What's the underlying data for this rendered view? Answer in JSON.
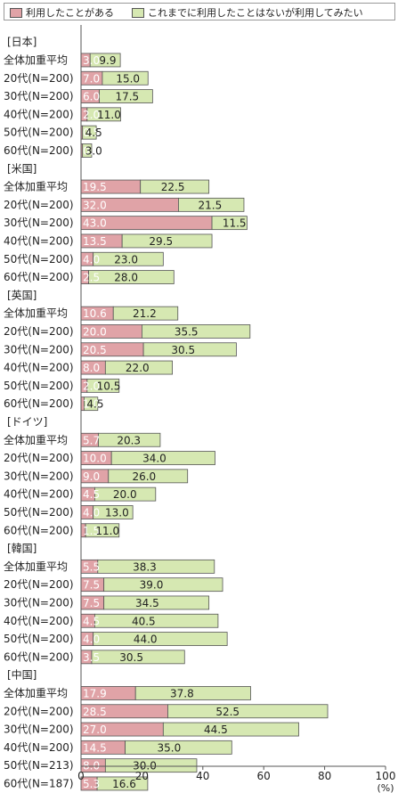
{
  "legend": {
    "used": "利用したことがある",
    "want": "これまでに利用したことはないが利用してみたい"
  },
  "colors": {
    "used": "#e0a3a7",
    "want": "#d6e8b2",
    "border": "#555555",
    "axis": "#555555"
  },
  "chart_data": {
    "type": "bar",
    "orientation": "horizontal",
    "stacked": true,
    "xlim": [
      0,
      100
    ],
    "xticks": [
      "0",
      "20",
      "40",
      "60",
      "80",
      "100"
    ],
    "unit": "(%)",
    "series": [
      {
        "key": "used",
        "name": "利用したことがある"
      },
      {
        "key": "want",
        "name": "これまでに利用したことはないが利用してみたい"
      }
    ],
    "groups": [
      {
        "name": "[日本]",
        "rows": [
          {
            "label": "全体加重平均",
            "used": 3.0,
            "want": 9.9,
            "used_label": "3.0",
            "want_label": "9.9"
          },
          {
            "label": "20代(N=200)",
            "used": 7.0,
            "want": 15.0,
            "used_label": "7.0",
            "want_label": "15.0"
          },
          {
            "label": "30代(N=200)",
            "used": 6.0,
            "want": 17.5,
            "used_label": "6.0",
            "want_label": "17.5"
          },
          {
            "label": "40代(N=200)",
            "used": 2.0,
            "want": 11.0,
            "used_label": "2.0",
            "want_label": "11.0"
          },
          {
            "label": "50代(N=200)",
            "used": 0.5,
            "want": 4.5,
            "used_label": "0.5",
            "want_label": "4.5"
          },
          {
            "label": "60代(N=200)",
            "used": 0.5,
            "want": 3.0,
            "used_label": "0.5",
            "want_label": "3.0"
          }
        ]
      },
      {
        "name": "[米国]",
        "rows": [
          {
            "label": "全体加重平均",
            "used": 19.5,
            "want": 22.5,
            "used_label": "19.5",
            "want_label": "22.5"
          },
          {
            "label": "20代(N=200)",
            "used": 32.0,
            "want": 21.5,
            "used_label": "32.0",
            "want_label": "21.5"
          },
          {
            "label": "30代(N=200)",
            "used": 43.0,
            "want": 11.5,
            "used_label": "43.0",
            "want_label": "11.5"
          },
          {
            "label": "40代(N=200)",
            "used": 13.5,
            "want": 29.5,
            "used_label": "13.5",
            "want_label": "29.5"
          },
          {
            "label": "50代(N=200)",
            "used": 4.0,
            "want": 23.0,
            "used_label": "4.0",
            "want_label": "23.0"
          },
          {
            "label": "60代(N=200)",
            "used": 2.5,
            "want": 28.0,
            "used_label": "2.5",
            "want_label": "28.0"
          }
        ]
      },
      {
        "name": "[英国]",
        "rows": [
          {
            "label": "全体加重平均",
            "used": 10.6,
            "want": 21.2,
            "used_label": "10.6",
            "want_label": "21.2"
          },
          {
            "label": "20代(N=200)",
            "used": 20.0,
            "want": 35.5,
            "used_label": "20.0",
            "want_label": "35.5"
          },
          {
            "label": "30代(N=200)",
            "used": 20.5,
            "want": 30.5,
            "used_label": "20.5",
            "want_label": "30.5"
          },
          {
            "label": "40代(N=200)",
            "used": 8.0,
            "want": 22.0,
            "used_label": "8.0",
            "want_label": "22.0"
          },
          {
            "label": "50代(N=200)",
            "used": 2.0,
            "want": 10.5,
            "used_label": "2.0",
            "want_label": "10.5"
          },
          {
            "label": "60代(N=200)",
            "used": 1.0,
            "want": 4.5,
            "used_label": "1.0",
            "want_label": "4.5"
          }
        ]
      },
      {
        "name": "[ドイツ]",
        "rows": [
          {
            "label": "全体加重平均",
            "used": 5.7,
            "want": 20.3,
            "used_label": "5.7",
            "want_label": "20.3"
          },
          {
            "label": "20代(N=200)",
            "used": 10.0,
            "want": 34.0,
            "used_label": "10.0",
            "want_label": "34.0"
          },
          {
            "label": "30代(N=200)",
            "used": 9.0,
            "want": 26.0,
            "used_label": "9.0",
            "want_label": "26.0"
          },
          {
            "label": "40代(N=200)",
            "used": 4.5,
            "want": 20.0,
            "used_label": "4.5",
            "want_label": "20.0"
          },
          {
            "label": "50代(N=200)",
            "used": 4.0,
            "want": 13.0,
            "used_label": "4.0",
            "want_label": "13.0"
          },
          {
            "label": "60代(N=200)",
            "used": 1.5,
            "want": 11.0,
            "used_label": "1.5",
            "want_label": "11.0"
          }
        ]
      },
      {
        "name": "[韓国]",
        "rows": [
          {
            "label": "全体加重平均",
            "used": 5.5,
            "want": 38.3,
            "used_label": "5.5",
            "want_label": "38.3"
          },
          {
            "label": "20代(N=200)",
            "used": 7.5,
            "want": 39.0,
            "used_label": "7.5",
            "want_label": "39.0"
          },
          {
            "label": "30代(N=200)",
            "used": 7.5,
            "want": 34.5,
            "used_label": "7.5",
            "want_label": "34.5"
          },
          {
            "label": "40代(N=200)",
            "used": 4.5,
            "want": 40.5,
            "used_label": "4.5",
            "want_label": "40.5"
          },
          {
            "label": "50代(N=200)",
            "used": 4.0,
            "want": 44.0,
            "used_label": "4.0",
            "want_label": "44.0"
          },
          {
            "label": "60代(N=200)",
            "used": 3.5,
            "want": 30.5,
            "used_label": "3.5",
            "want_label": "30.5"
          }
        ]
      },
      {
        "name": "[中国]",
        "rows": [
          {
            "label": "全体加重平均",
            "used": 17.9,
            "want": 37.8,
            "used_label": "17.9",
            "want_label": "37.8"
          },
          {
            "label": "20代(N=200)",
            "used": 28.5,
            "want": 52.5,
            "used_label": "28.5",
            "want_label": "52.5"
          },
          {
            "label": "30代(N=200)",
            "used": 27.0,
            "want": 44.5,
            "used_label": "27.0",
            "want_label": "44.5"
          },
          {
            "label": "40代(N=200)",
            "used": 14.5,
            "want": 35.0,
            "used_label": "14.5",
            "want_label": "35.0"
          },
          {
            "label": "50代(N=213)",
            "used": 8.0,
            "want": 30.0,
            "used_label": "8.0",
            "want_label": "30.0"
          },
          {
            "label": "60代(N=187)",
            "used": 5.3,
            "want": 16.6,
            "used_label": "5.3",
            "want_label": "16.6"
          }
        ]
      }
    ]
  }
}
